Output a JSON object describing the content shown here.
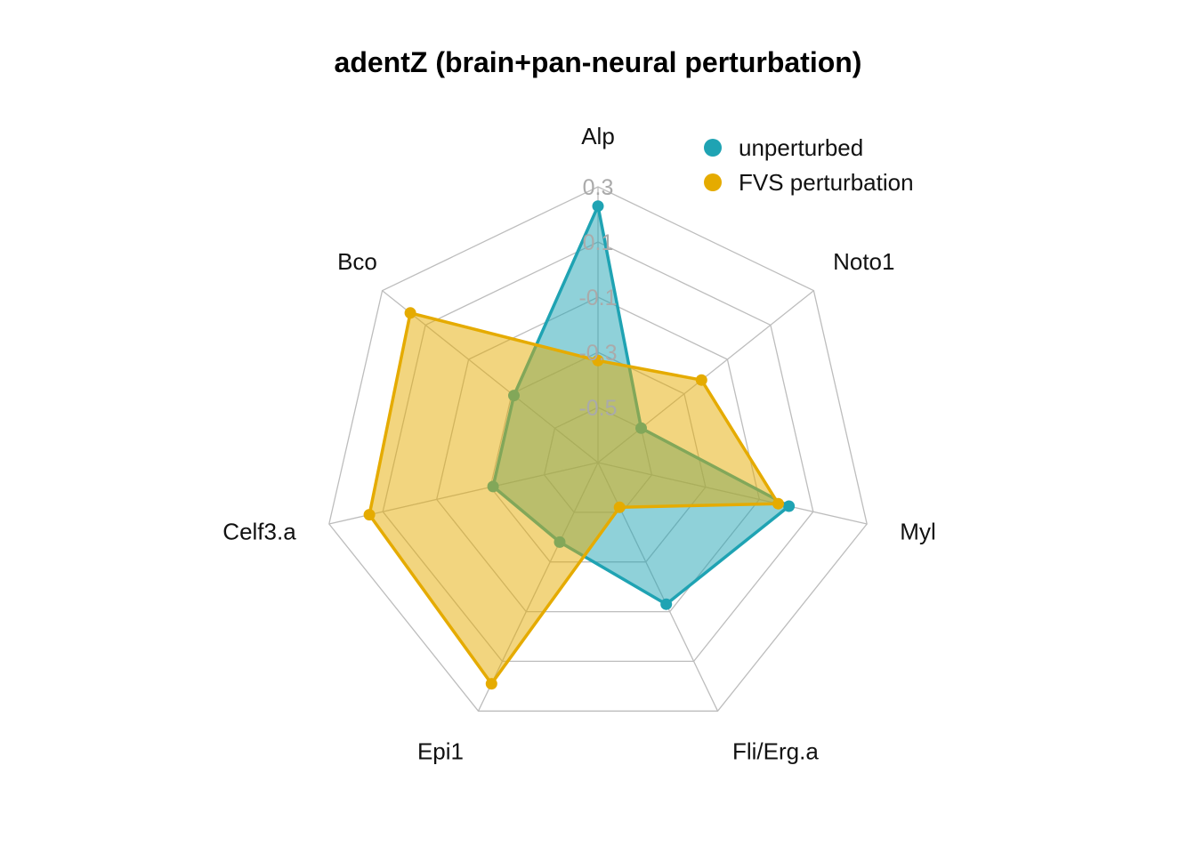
{
  "chart_data": {
    "type": "radar",
    "title": "adentZ (brain+pan-neural perturbation)",
    "axes": [
      "Alp",
      "Noto1",
      "Myl",
      "Fli/Erg.a",
      "Epi1",
      "Celf3.a",
      "Bco"
    ],
    "tick_labels": [
      "0.3",
      "0.1",
      "-0.1",
      "-0.3",
      "-0.5"
    ],
    "range": [
      -0.7,
      0.3
    ],
    "grid_rings": 5,
    "legend_position": "top-right",
    "series": [
      {
        "name": "unperturbed",
        "color": "#1fa3b3",
        "values": [
          0.23,
          -0.5,
          0.01,
          -0.13,
          -0.38,
          -0.31,
          -0.31
        ]
      },
      {
        "name": "FVS perturbation",
        "color": "#e5ab00",
        "values": [
          -0.33,
          -0.22,
          -0.03,
          -0.52,
          0.19,
          0.15,
          0.17
        ]
      }
    ]
  }
}
